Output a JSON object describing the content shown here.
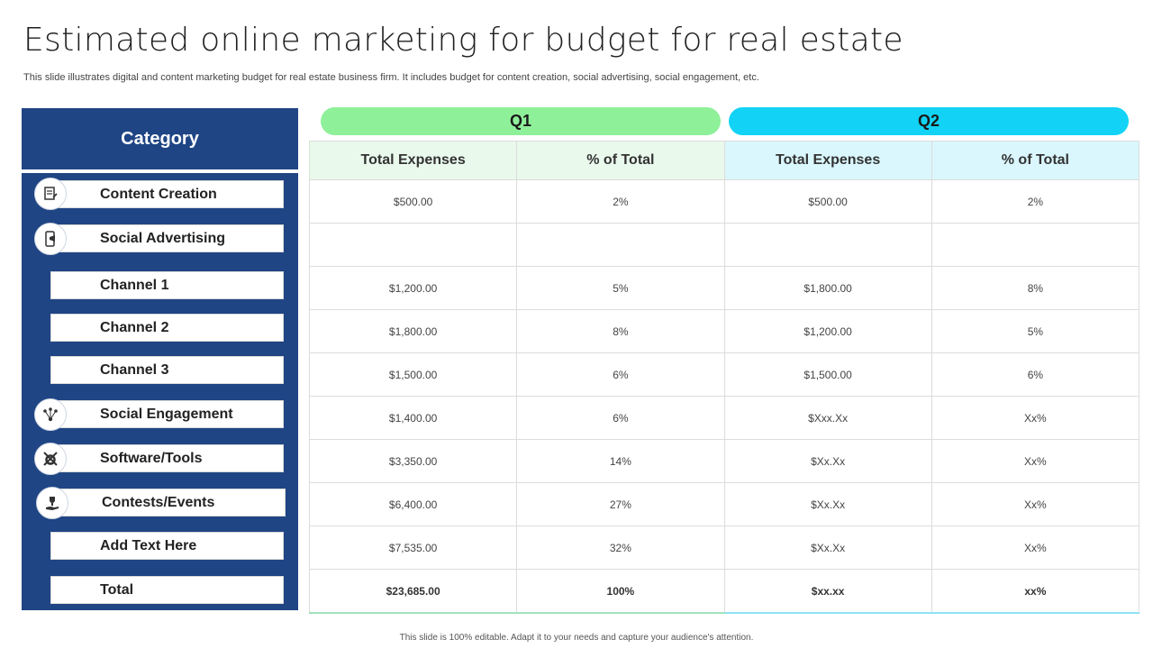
{
  "title": "Estimated online marketing for budget for real estate",
  "subtitle": "This slide illustrates digital and content marketing budget for real estate business firm. It includes budget for content creation, social advertising, social engagement, etc.",
  "category_header": "Category",
  "quarters": {
    "q1": "Q1",
    "q2": "Q2"
  },
  "columns": {
    "total_expenses": "Total Expenses",
    "pct_of_total": "% of Total"
  },
  "colors": {
    "panel": "#1f4584",
    "q1": "#8ff09a",
    "q2": "#12d3f5"
  },
  "rows": [
    {
      "label": "Content Creation",
      "icon": "content-creation-icon",
      "q1_exp": "$500.00",
      "q1_pct": "2%",
      "q2_exp": "$500.00",
      "q2_pct": "2%"
    },
    {
      "label": "Social Advertising",
      "icon": "mobile-advertising-icon",
      "q1_exp": "",
      "q1_pct": "",
      "q2_exp": "",
      "q2_pct": ""
    },
    {
      "label": "Channel 1",
      "q1_exp": "$1,200.00",
      "q1_pct": "5%",
      "q2_exp": "$1,800.00",
      "q2_pct": "8%"
    },
    {
      "label": "Channel 2",
      "q1_exp": "$1,800.00",
      "q1_pct": "8%",
      "q2_exp": "$1,200.00",
      "q2_pct": "5%"
    },
    {
      "label": "Channel 3",
      "q1_exp": "$1,500.00",
      "q1_pct": "6%",
      "q2_exp": "$1,500.00",
      "q2_pct": "6%"
    },
    {
      "label": "Social Engagement",
      "icon": "social-network-icon",
      "q1_exp": "$1,400.00",
      "q1_pct": "6%",
      "q2_exp": "$Xxx.Xx",
      "q2_pct": "Xx%"
    },
    {
      "label": "Software/Tools",
      "icon": "gear-tools-icon",
      "q1_exp": "$3,350.00",
      "q1_pct": "14%",
      "q2_exp": "$Xx.Xx",
      "q2_pct": "Xx%"
    },
    {
      "label": "Contests/Events",
      "icon": "trophy-hand-icon",
      "q1_exp": "$6,400.00",
      "q1_pct": "27%",
      "q2_exp": "$Xx.Xx",
      "q2_pct": "Xx%"
    },
    {
      "label": "Add Text Here",
      "q1_exp": "$7,535.00",
      "q1_pct": "32%",
      "q2_exp": "$Xx.Xx",
      "q2_pct": "Xx%"
    },
    {
      "label": "Total",
      "q1_exp": "$23,685.00",
      "q1_pct": "100%",
      "q2_exp": "$xx.xx",
      "q2_pct": "xx%"
    }
  ],
  "footer": "This slide is 100% editable. Adapt it to your needs and capture your audience's attention."
}
